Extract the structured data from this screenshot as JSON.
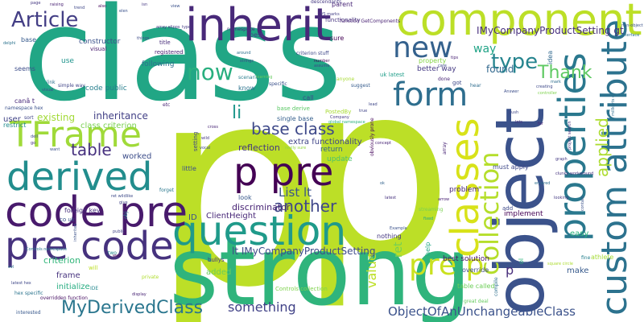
{
  "words": [
    {
      "text": "p",
      "color": "#bcdf27"
    },
    {
      "text": "p",
      "color": "#bcdf27"
    },
    {
      "text": "class",
      "color": "#21a685"
    },
    {
      "text": "strong",
      "color": "#2fb47c"
    },
    {
      "text": "object",
      "color": "#3b528b"
    },
    {
      "text": "component",
      "color": "#bcdf27"
    },
    {
      "text": "inherit",
      "color": "#482979"
    },
    {
      "text": "custom attribute",
      "color": "#2c728e"
    },
    {
      "text": "properties",
      "color": "#2a788e"
    },
    {
      "text": "classes",
      "color": "#d8e219"
    },
    {
      "text": "question",
      "color": "#1f9a8a"
    },
    {
      "text": "code pre",
      "color": "#481a6c"
    },
    {
      "text": "pre code",
      "color": "#46327e"
    },
    {
      "text": "derived",
      "color": "#228d8d"
    },
    {
      "text": "p pre",
      "color": "#440154"
    },
    {
      "text": "TFrame",
      "color": "#a0da39"
    },
    {
      "text": "form",
      "color": "#2e6e8e"
    },
    {
      "text": "collection",
      "color": "#b5de2b"
    },
    {
      "text": "pre p",
      "color": "#cae11f"
    },
    {
      "text": "new",
      "color": "#34618d"
    },
    {
      "text": "now",
      "color": "#29af7f"
    },
    {
      "text": "Article",
      "color": "#433e85"
    },
    {
      "text": "type",
      "color": "#25848e"
    },
    {
      "text": "Thank",
      "color": "#5ec962"
    },
    {
      "text": "base class",
      "color": "#3e4989"
    },
    {
      "text": "applied",
      "color": "#addc30"
    },
    {
      "text": "another",
      "color": "#3f4788"
    },
    {
      "text": "table",
      "color": "#46307e"
    },
    {
      "text": "MyDerivedClass",
      "color": "#2a768e"
    },
    {
      "text": "ObjectOfAnUnchangeableClass",
      "color": "#3b528b"
    },
    {
      "text": "value",
      "color": "#bddf26"
    },
    {
      "text": "something",
      "color": "#414287"
    },
    {
      "text": "li",
      "color": "#1f978b"
    },
    {
      "text": "List lt",
      "color": "#3a548c"
    },
    {
      "text": "lt IMyCompanyProductSetting",
      "color": "#3e4a89"
    },
    {
      "text": "way",
      "color": "#20a386"
    },
    {
      "text": "found",
      "color": "#31688e"
    },
    {
      "text": "p",
      "color": "#472d7b"
    },
    {
      "text": "ret",
      "color": "#75d054"
    },
    {
      "text": "IMyCompanyProductSetting gt",
      "color": "#472f7d"
    },
    {
      "text": "inheritance",
      "color": "#424086"
    },
    {
      "text": "class criterion",
      "color": "#7ad151"
    },
    {
      "text": "reflection",
      "color": "#453781"
    },
    {
      "text": "discriminator",
      "color": "#482475"
    },
    {
      "text": "extra functionality",
      "color": "#404588"
    },
    {
      "text": "worked",
      "color": "#3d4e8a"
    },
    {
      "text": "criterion",
      "color": "#32b67a"
    },
    {
      "text": "frame",
      "color": "#46327e"
    },
    {
      "text": "initialize",
      "color": "#27ad81"
    },
    {
      "text": "ClientHeight",
      "color": "#482878"
    },
    {
      "text": "ID",
      "color": "#3b528b"
    },
    {
      "text": "added",
      "color": "#6ccd5a"
    },
    {
      "text": "existing",
      "color": "#a2da37"
    },
    {
      "text": "user",
      "color": "#414487"
    },
    {
      "text": "code public",
      "color": "#277f8e"
    },
    {
      "text": "constructor",
      "color": "#3b528b"
    },
    {
      "text": "following",
      "color": "#2d708e"
    },
    {
      "text": "problem",
      "color": "#482576"
    },
    {
      "text": "better way",
      "color": "#443983"
    },
    {
      "text": "property",
      "color": "#86d549"
    },
    {
      "text": "easy",
      "color": "#2db27d"
    },
    {
      "text": "implement",
      "color": "#440154"
    },
    {
      "text": "must apply",
      "color": "#3f4889"
    },
    {
      "text": "best solution",
      "color": "#471365"
    },
    {
      "text": "override",
      "color": "#3e4c8a"
    },
    {
      "text": "table called",
      "color": "#6ece58"
    },
    {
      "text": "make",
      "color": "#375a8c"
    },
    {
      "text": "return",
      "color": "#33628d"
    },
    {
      "text": "update",
      "color": "#4ac16d"
    },
    {
      "text": "single base",
      "color": "#355f8d"
    },
    {
      "text": "Controls collection",
      "color": "#7fd34e"
    },
    {
      "text": "nothing",
      "color": "#453781"
    },
    {
      "text": "athlete",
      "color": "#a5db36"
    },
    {
      "text": "sure",
      "color": "#440154"
    },
    {
      "text": "use",
      "color": "#1f948c"
    },
    {
      "text": "visual",
      "color": "#481b6d"
    },
    {
      "text": "registered",
      "color": "#482173"
    },
    {
      "text": "title",
      "color": "#472c7a"
    },
    {
      "text": "base",
      "color": "#375b8d"
    },
    {
      "text": "seems",
      "color": "#3d4d8a"
    },
    {
      "text": "canâ t",
      "color": "#482979"
    },
    {
      "text": "restrict",
      "color": "#228b8d"
    },
    {
      "text": "sort",
      "color": "#404588"
    },
    {
      "text": "foreign key",
      "color": "#472e7c"
    },
    {
      "text": "co uk",
      "color": "#3a538b"
    },
    {
      "text": "little",
      "color": "#3c4f8a"
    },
    {
      "text": "forget",
      "color": "#2a788e"
    },
    {
      "text": "call",
      "color": "#3e4989"
    },
    {
      "text": "etc",
      "color": "#482576"
    },
    {
      "text": "know",
      "color": "#2c738e"
    },
    {
      "text": "best",
      "color": "#414287"
    },
    {
      "text": "look",
      "color": "#38588c"
    },
    {
      "text": "two",
      "color": "#24878e"
    },
    {
      "text": "namespace hex",
      "color": "#3b528b"
    },
    {
      "text": "functionality",
      "color": "#46337f"
    },
    {
      "text": "function GetComponents",
      "color": "#482173"
    },
    {
      "text": "uk latest",
      "color": "#1f9e89"
    },
    {
      "text": "done",
      "color": "#482475"
    },
    {
      "text": "got",
      "color": "#3e4a89"
    },
    {
      "text": "hear",
      "color": "#2e6d8e"
    },
    {
      "text": "idea",
      "color": "#30688e"
    },
    {
      "text": "simple way",
      "color": "#414487"
    },
    {
      "text": "link",
      "color": "#2d708e"
    },
    {
      "text": "setting",
      "color": "#3f4788"
    },
    {
      "text": "PostedBy",
      "color": "#a8db34"
    },
    {
      "text": "base derive",
      "color": "#5ac864"
    },
    {
      "text": "obviously prone",
      "color": "#46085c"
    },
    {
      "text": "really sure",
      "color": "#93d741"
    },
    {
      "text": "array",
      "color": "#482475"
    },
    {
      "text": "streaming",
      "color": "#7ad151"
    },
    {
      "text": "help",
      "color": "#22a884"
    },
    {
      "text": "great deal",
      "color": "#65cb5e"
    },
    {
      "text": "add",
      "color": "#3e4989"
    },
    {
      "text": "compile",
      "color": "#2e6f8e"
    },
    {
      "text": "hex specific",
      "color": "#2b748e"
    },
    {
      "text": "overridden function",
      "color": "#471063"
    },
    {
      "text": "interested",
      "color": "#38598c"
    },
    {
      "text": "latest hex",
      "color": "#3f4788"
    },
    {
      "text": "private",
      "color": "#b0dd2f"
    },
    {
      "text": "will",
      "color": "#bddf26"
    },
    {
      "text": "IDE",
      "color": "#23888e"
    },
    {
      "text": "square circle",
      "color": "#addc30"
    },
    {
      "text": "fine",
      "color": "#27808e"
    },
    {
      "text": "ol",
      "color": "#2fb47c"
    },
    {
      "text": "parent",
      "color": "#482576"
    },
    {
      "text": "descendants",
      "color": "#453882"
    },
    {
      "text": "VS marks",
      "color": "#433e85"
    },
    {
      "text": "namespace",
      "color": "#46307e"
    },
    {
      "text": "criterion stuff",
      "color": "#3f4889"
    },
    {
      "text": "scenario",
      "color": "#287d8e"
    },
    {
      "text": "specific",
      "color": "#3b528b"
    },
    {
      "text": "anyone",
      "color": "#a8db34"
    },
    {
      "text": "suggest",
      "color": "#365c8d"
    },
    {
      "text": "number",
      "color": "#440154"
    },
    {
      "text": "assume",
      "color": "#404588"
    },
    {
      "text": "array elipps_type",
      "color": "#443a83"
    },
    {
      "text": "view",
      "color": "#3b528b"
    },
    {
      "text": "things",
      "color": "#3e4c8a"
    },
    {
      "text": "page",
      "color": "#453781"
    },
    {
      "text": "delphi",
      "color": "#2c728e"
    },
    {
      "text": "visual",
      "color": "#3b528b"
    },
    {
      "text": "clunky workaround",
      "color": "#46337f"
    },
    {
      "text": "creating",
      "color": "#3e4989"
    },
    {
      "text": "controller",
      "color": "#7fd34e"
    },
    {
      "text": "millkerts co",
      "color": "#2e6e8e"
    },
    {
      "text": "project search",
      "color": "#46327e"
    },
    {
      "text": "Answer",
      "color": "#3d4e8a"
    },
    {
      "text": "Company",
      "color": "#443983"
    },
    {
      "text": "global namespace",
      "color": "#2db27d"
    },
    {
      "text": "Controls namespace",
      "color": "#2a768e"
    },
    {
      "text": "trend",
      "color": "#3f4788"
    },
    {
      "text": "raising",
      "color": "#482173"
    },
    {
      "text": "isn",
      "color": "#453882"
    },
    {
      "text": "also",
      "color": "#46085c"
    },
    {
      "text": "elen",
      "color": "#3b528b"
    },
    {
      "text": "ovl",
      "color": "#2c728e"
    },
    {
      "text": "web",
      "color": "#440154"
    },
    {
      "text": "give",
      "color": "#414487"
    },
    {
      "text": "ret wildlike",
      "color": "#3e4a89"
    },
    {
      "text": "Example",
      "color": "#3b528b"
    },
    {
      "text": "concept",
      "color": "#482576"
    },
    {
      "text": "ok",
      "color": "#33638d"
    },
    {
      "text": "fixed",
      "color": "#22a884"
    },
    {
      "text": "latest",
      "color": "#46327e"
    },
    {
      "text": "lead",
      "color": "#3f4788"
    },
    {
      "text": "true",
      "color": "#404588"
    },
    {
      "text": "arrow",
      "color": "#482173"
    },
    {
      "text": "entered",
      "color": "#2e6e8e"
    },
    {
      "text": "looking",
      "color": "#443983"
    },
    {
      "text": "inherited",
      "color": "#3b528b"
    },
    {
      "text": "display",
      "color": "#482475"
    },
    {
      "text": "bullys",
      "color": "#453781"
    },
    {
      "text": "dell",
      "color": "#3e4989"
    },
    {
      "text": "obj",
      "color": "#2a788e"
    },
    {
      "text": "go",
      "color": "#46327e"
    },
    {
      "text": "want",
      "color": "#3b528b"
    },
    {
      "text": "public",
      "color": "#414287"
    },
    {
      "text": "around",
      "color": "#2d708e"
    },
    {
      "text": "strings",
      "color": "#3e4c8a"
    },
    {
      "text": "cross",
      "color": "#482576"
    },
    {
      "text": "wild",
      "color": "#453882"
    },
    {
      "text": "vocal",
      "color": "#3f4788"
    },
    {
      "text": "learning",
      "color": "#65cb5e"
    },
    {
      "text": "contain",
      "color": "#3b528b"
    },
    {
      "text": "tips",
      "color": "#482173"
    },
    {
      "text": "care",
      "color": "#3e4989"
    },
    {
      "text": "mark",
      "color": "#2e6d8e"
    },
    {
      "text": "graph",
      "color": "#443983"
    },
    {
      "text": "push",
      "color": "#3f4788"
    },
    {
      "text": "lots",
      "color": "#46327e"
    },
    {
      "text": "far",
      "color": "#482475"
    },
    {
      "text": "non-object",
      "color": "#3b528b"
    },
    {
      "text": "interface",
      "color": "#2c728e"
    }
  ]
}
